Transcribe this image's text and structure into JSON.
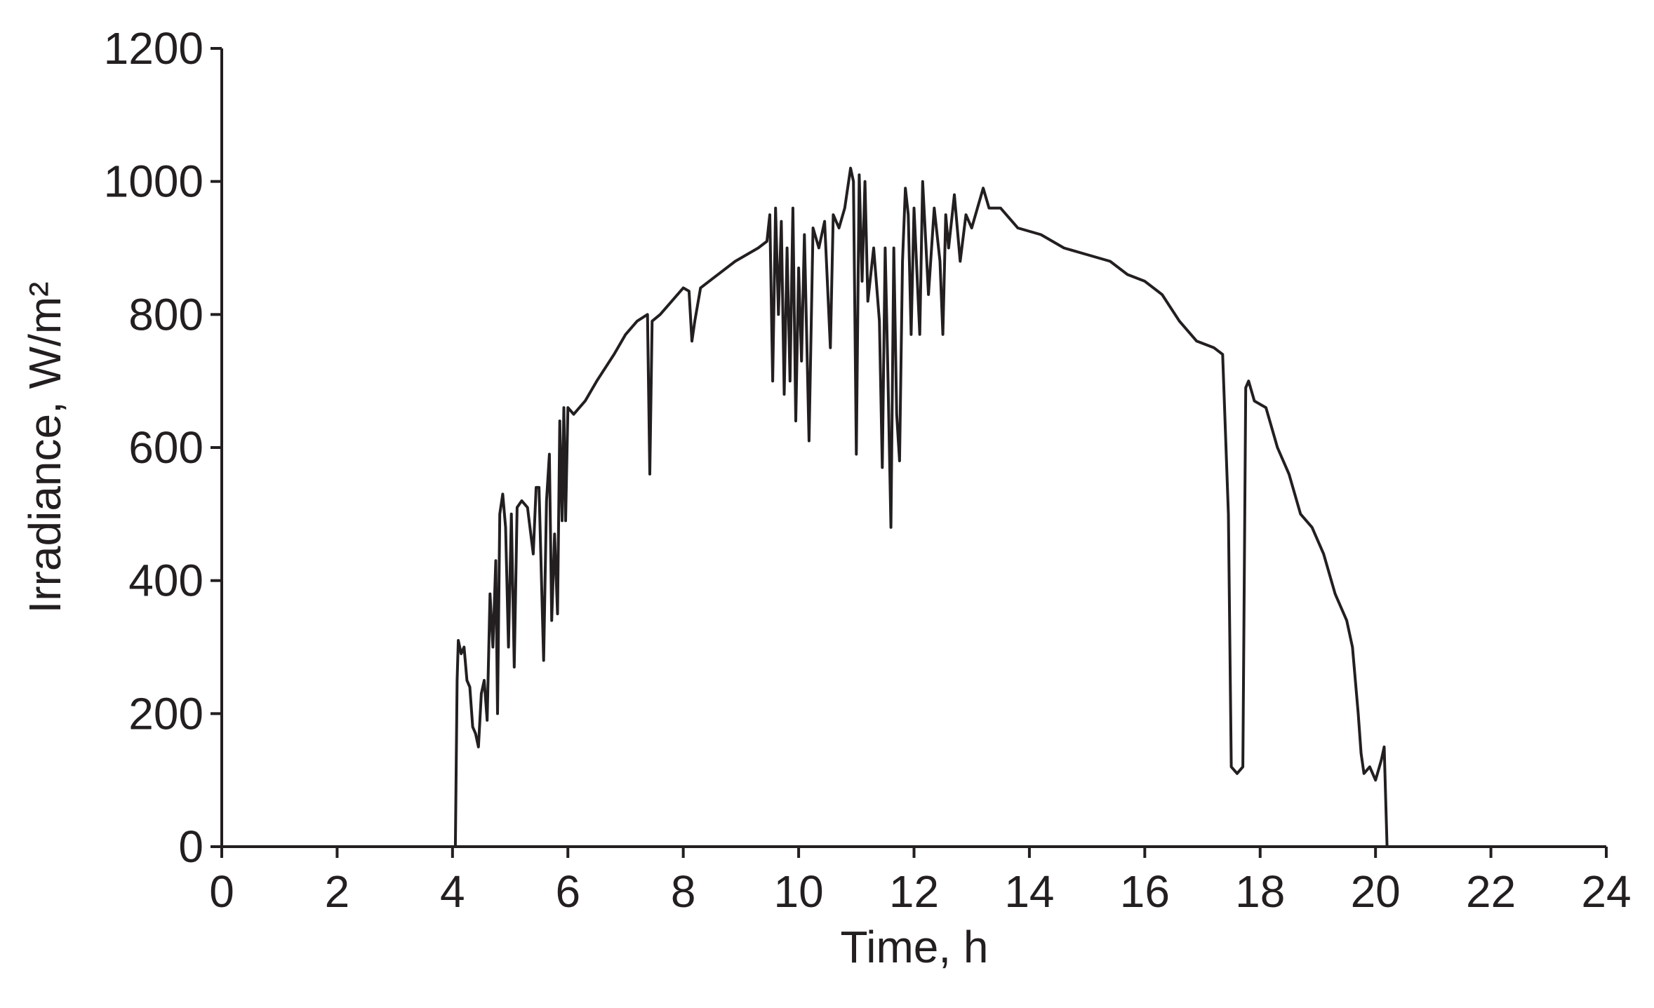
{
  "chart_data": {
    "type": "line",
    "xlabel": "Time, h",
    "ylabel": "Irradiance, W/m²",
    "color": "#231f20",
    "xlim": [
      0,
      24
    ],
    "xticks": [
      0,
      2,
      4,
      6,
      8,
      10,
      12,
      14,
      16,
      18,
      20,
      22,
      24
    ],
    "ylim": [
      0,
      1200
    ],
    "yticks": [
      0,
      200,
      400,
      600,
      800,
      1000,
      1200
    ],
    "x": [
      0,
      4.0,
      4.05,
      4.08,
      4.1,
      4.15,
      4.2,
      4.25,
      4.3,
      4.35,
      4.4,
      4.45,
      4.5,
      4.55,
      4.6,
      4.65,
      4.7,
      4.75,
      4.78,
      4.82,
      4.87,
      4.92,
      4.97,
      5.02,
      5.07,
      5.12,
      5.2,
      5.3,
      5.4,
      5.45,
      5.5,
      5.58,
      5.63,
      5.68,
      5.72,
      5.77,
      5.82,
      5.86,
      5.9,
      5.93,
      5.96,
      6.0,
      6.1,
      6.3,
      6.5,
      6.8,
      7.0,
      7.2,
      7.38,
      7.42,
      7.46,
      7.6,
      7.8,
      8.0,
      8.1,
      8.15,
      8.2,
      8.3,
      8.6,
      8.9,
      9.1,
      9.3,
      9.45,
      9.5,
      9.55,
      9.6,
      9.65,
      9.7,
      9.75,
      9.8,
      9.85,
      9.9,
      9.95,
      10.0,
      10.05,
      10.1,
      10.18,
      10.25,
      10.35,
      10.45,
      10.55,
      10.6,
      10.7,
      10.8,
      10.9,
      10.95,
      11.0,
      11.05,
      11.1,
      11.15,
      11.2,
      11.3,
      11.4,
      11.45,
      11.5,
      11.55,
      11.6,
      11.65,
      11.7,
      11.75,
      11.8,
      11.85,
      11.9,
      11.95,
      12.0,
      12.1,
      12.15,
      12.25,
      12.35,
      12.45,
      12.5,
      12.55,
      12.6,
      12.7,
      12.8,
      12.9,
      13.0,
      13.1,
      13.2,
      13.3,
      13.5,
      13.8,
      14.2,
      14.6,
      15.0,
      15.4,
      15.7,
      16.0,
      16.3,
      16.6,
      16.9,
      17.2,
      17.35,
      17.45,
      17.5,
      17.6,
      17.7,
      17.75,
      17.8,
      17.9,
      18.1,
      18.3,
      18.5,
      18.7,
      18.9,
      19.1,
      19.3,
      19.5,
      19.6,
      19.7,
      19.75,
      19.8,
      19.9,
      20.0,
      20.1,
      20.15,
      20.2,
      24
    ],
    "values": [
      0,
      0,
      0,
      250,
      310,
      290,
      300,
      250,
      240,
      180,
      170,
      150,
      230,
      250,
      190,
      380,
      300,
      430,
      200,
      500,
      530,
      480,
      300,
      500,
      270,
      510,
      520,
      510,
      440,
      540,
      540,
      280,
      520,
      590,
      340,
      470,
      350,
      640,
      490,
      660,
      490,
      660,
      650,
      670,
      700,
      740,
      770,
      790,
      800,
      560,
      790,
      800,
      820,
      840,
      835,
      760,
      790,
      840,
      860,
      880,
      890,
      900,
      910,
      950,
      700,
      960,
      800,
      940,
      680,
      900,
      700,
      960,
      640,
      870,
      730,
      920,
      610,
      930,
      900,
      940,
      750,
      950,
      930,
      960,
      1020,
      1000,
      590,
      1010,
      850,
      1000,
      820,
      900,
      790,
      570,
      900,
      700,
      480,
      900,
      650,
      580,
      880,
      990,
      950,
      770,
      960,
      770,
      1000,
      830,
      960,
      880,
      770,
      950,
      900,
      980,
      880,
      950,
      930,
      960,
      990,
      960,
      960,
      930,
      920,
      900,
      890,
      880,
      860,
      850,
      830,
      790,
      760,
      750,
      740,
      500,
      120,
      110,
      120,
      690,
      700,
      670,
      660,
      600,
      560,
      500,
      480,
      440,
      380,
      340,
      300,
      200,
      140,
      110,
      120,
      100,
      130,
      150,
      0,
      0
    ]
  }
}
